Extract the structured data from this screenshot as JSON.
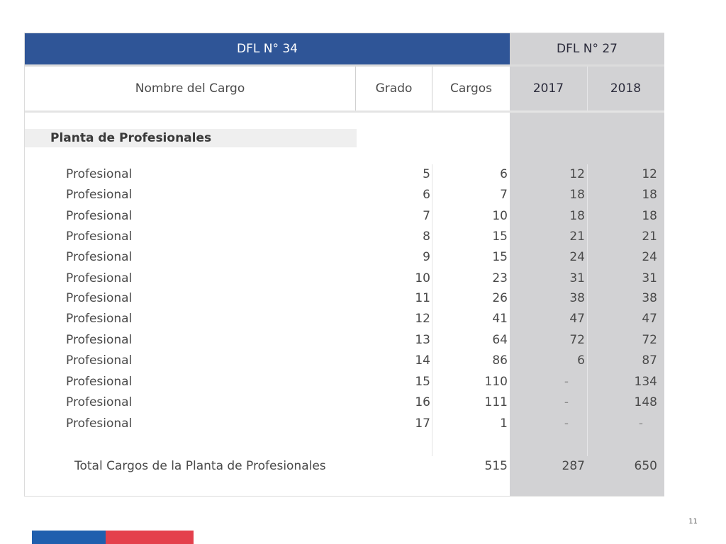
{
  "header": {
    "left_title": "DFL N° 34",
    "right_title": "DFL N° 27"
  },
  "columns": {
    "name": "Nombre del Cargo",
    "grado": "Grado",
    "cargos": "Cargos",
    "y2017": "2017",
    "y2018": "2018"
  },
  "section": {
    "title": "Planta de Profesionales"
  },
  "rows": [
    {
      "name": "Profesional",
      "grado": "5",
      "cargos": "6",
      "y2017": "12",
      "y2018": "12"
    },
    {
      "name": "Profesional",
      "grado": "6",
      "cargos": "7",
      "y2017": "18",
      "y2018": "18"
    },
    {
      "name": "Profesional",
      "grado": "7",
      "cargos": "10",
      "y2017": "18",
      "y2018": "18"
    },
    {
      "name": "Profesional",
      "grado": "8",
      "cargos": "15",
      "y2017": "21",
      "y2018": "21"
    },
    {
      "name": "Profesional",
      "grado": "9",
      "cargos": "15",
      "y2017": "24",
      "y2018": "24"
    },
    {
      "name": "Profesional",
      "grado": "10",
      "cargos": "23",
      "y2017": "31",
      "y2018": "31"
    },
    {
      "name": "Profesional",
      "grado": "11",
      "cargos": "26",
      "y2017": "38",
      "y2018": "38"
    },
    {
      "name": "Profesional",
      "grado": "12",
      "cargos": "41",
      "y2017": "47",
      "y2018": "47"
    },
    {
      "name": "Profesional",
      "grado": "13",
      "cargos": "64",
      "y2017": "72",
      "y2018": "72"
    },
    {
      "name": "Profesional",
      "grado": "14",
      "cargos": "86",
      "y2017": "6",
      "y2018": "87"
    },
    {
      "name": "Profesional",
      "grado": "15",
      "cargos": "110",
      "y2017": "-",
      "y2018": "134"
    },
    {
      "name": "Profesional",
      "grado": "16",
      "cargos": "111",
      "y2017": "-",
      "y2018": "148"
    },
    {
      "name": "Profesional",
      "grado": "17",
      "cargos": "1",
      "y2017": "-",
      "y2018": "-"
    }
  ],
  "total": {
    "label": "Total Cargos de la Planta de Profesionales",
    "cargos": "515",
    "y2017": "287",
    "y2018": "650"
  },
  "footer": {
    "page_number": "11"
  },
  "colors": {
    "header_blue": "#2f5597",
    "panel_grey": "#d2d2d4",
    "flag_blue": "#1f5fae",
    "flag_red": "#e4404c"
  }
}
